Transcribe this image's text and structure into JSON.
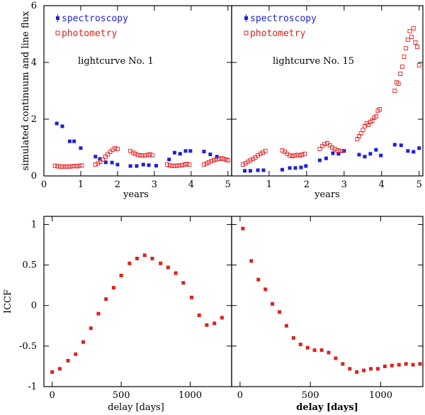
{
  "colors": {
    "spectroscopy": "#1f1fd8",
    "photometry": "#e02020",
    "iccf": "#e02020",
    "axis": "#000000"
  },
  "chart_data": [
    {
      "type": "scatter",
      "id": "lc1",
      "title": "lightcurve No. 1",
      "xlabel": "years",
      "ylabel": "simulated continuum and line flux",
      "xlim": [
        0,
        5.1
      ],
      "ylim": [
        0,
        6
      ],
      "xticks": [
        0,
        1,
        2,
        3,
        4,
        5
      ],
      "yticks": [
        0,
        2,
        4,
        6
      ],
      "legend": [
        {
          "name": "spectroscopy",
          "marker": "filled-square"
        },
        {
          "name": "photometry",
          "marker": "open-square"
        }
      ],
      "series": [
        {
          "name": "spectroscopy",
          "marker": "filled-square",
          "x": [
            0.35,
            0.5,
            0.7,
            0.82,
            1.0,
            1.4,
            1.52,
            1.68,
            1.85,
            2.0,
            2.35,
            2.52,
            2.7,
            2.85,
            3.05,
            3.4,
            3.55,
            3.7,
            3.85,
            3.98,
            4.35,
            4.52,
            4.7
          ],
          "y": [
            1.85,
            1.75,
            1.22,
            1.22,
            0.98,
            0.68,
            0.6,
            0.48,
            0.47,
            0.4,
            0.35,
            0.35,
            0.4,
            0.38,
            0.36,
            0.58,
            0.82,
            0.78,
            0.88,
            0.88,
            0.86,
            0.76,
            0.68
          ]
        },
        {
          "name": "photometry",
          "marker": "open-square",
          "x": [
            0.3,
            0.37,
            0.44,
            0.5,
            0.57,
            0.63,
            0.7,
            0.77,
            0.83,
            0.9,
            0.97,
            1.03,
            1.4,
            1.47,
            1.53,
            1.6,
            1.67,
            1.73,
            1.8,
            1.87,
            1.93,
            2.0,
            2.35,
            2.42,
            2.48,
            2.55,
            2.62,
            2.68,
            2.75,
            2.82,
            2.88,
            2.95,
            3.35,
            3.42,
            3.48,
            3.55,
            3.62,
            3.68,
            3.75,
            3.82,
            3.88,
            3.95,
            4.35,
            4.42,
            4.48,
            4.55,
            4.62,
            4.68,
            4.75,
            4.82,
            4.88,
            4.95,
            5.0
          ],
          "y": [
            0.36,
            0.34,
            0.33,
            0.33,
            0.33,
            0.33,
            0.33,
            0.34,
            0.35,
            0.34,
            0.36,
            0.37,
            0.4,
            0.44,
            0.5,
            0.58,
            0.68,
            0.76,
            0.85,
            0.92,
            0.98,
            0.95,
            0.88,
            0.82,
            0.78,
            0.74,
            0.73,
            0.72,
            0.72,
            0.74,
            0.76,
            0.73,
            0.4,
            0.37,
            0.36,
            0.35,
            0.36,
            0.37,
            0.38,
            0.4,
            0.42,
            0.4,
            0.4,
            0.44,
            0.48,
            0.52,
            0.56,
            0.58,
            0.6,
            0.62,
            0.6,
            0.58,
            0.55
          ]
        }
      ]
    },
    {
      "type": "scatter",
      "id": "lc15",
      "title": "lightcurve No. 15",
      "xlabel": "years",
      "xlim": [
        0,
        5.1
      ],
      "ylim": [
        0,
        6
      ],
      "xticks": [
        1,
        2,
        3,
        4,
        5
      ],
      "yticks": [
        0,
        2,
        4,
        6
      ],
      "legend": [
        {
          "name": "spectroscopy",
          "marker": "filled-square"
        },
        {
          "name": "photometry",
          "marker": "open-square"
        }
      ],
      "series": [
        {
          "name": "spectroscopy",
          "marker": "filled-square",
          "x": [
            0.35,
            0.5,
            0.7,
            0.85,
            1.35,
            1.55,
            1.7,
            1.85,
            1.98,
            2.35,
            2.52,
            2.7,
            2.85,
            3.0,
            3.4,
            3.55,
            3.7,
            3.85,
            3.98,
            4.35,
            4.52,
            4.7,
            4.85,
            5.0
          ],
          "y": [
            0.18,
            0.18,
            0.2,
            0.2,
            0.22,
            0.28,
            0.28,
            0.3,
            0.35,
            0.55,
            0.62,
            0.8,
            0.78,
            0.88,
            0.75,
            0.68,
            0.78,
            0.92,
            0.72,
            1.1,
            1.08,
            0.88,
            0.85,
            0.98
          ]
        },
        {
          "name": "photometry",
          "marker": "open-square",
          "x": [
            0.3,
            0.37,
            0.44,
            0.5,
            0.57,
            0.63,
            0.7,
            0.77,
            0.83,
            0.9,
            1.35,
            1.42,
            1.48,
            1.55,
            1.62,
            1.68,
            1.75,
            1.82,
            1.88,
            1.95,
            2.35,
            2.42,
            2.48,
            2.55,
            2.62,
            2.68,
            2.75,
            2.82,
            2.88,
            2.95,
            3.35,
            3.4,
            3.45,
            3.5,
            3.55,
            3.6,
            3.65,
            3.7,
            3.75,
            3.8,
            3.85,
            3.9,
            3.95,
            4.35,
            4.4,
            4.45,
            4.5,
            4.55,
            4.6,
            4.65,
            4.7,
            4.75,
            4.8,
            4.85,
            4.9,
            4.95,
            5.0
          ],
          "y": [
            0.4,
            0.45,
            0.5,
            0.55,
            0.6,
            0.65,
            0.72,
            0.78,
            0.82,
            0.88,
            0.9,
            0.85,
            0.78,
            0.72,
            0.7,
            0.72,
            0.74,
            0.72,
            0.75,
            0.78,
            0.95,
            1.05,
            1.12,
            1.15,
            1.08,
            1.0,
            0.95,
            0.9,
            0.88,
            0.88,
            1.3,
            1.4,
            1.5,
            1.62,
            1.75,
            1.85,
            1.8,
            1.9,
            1.95,
            2.05,
            2.1,
            2.3,
            2.35,
            3.0,
            3.3,
            3.25,
            3.6,
            3.85,
            4.2,
            4.5,
            4.8,
            5.1,
            4.9,
            5.2,
            4.7,
            4.55,
            3.9
          ]
        }
      ]
    },
    {
      "type": "scatter",
      "id": "iccf1",
      "xlabel": "delay [days]",
      "ylabel": "ICCF",
      "xlim": [
        -60,
        1300
      ],
      "ylim": [
        -1,
        1.1
      ],
      "xticks": [
        0,
        500,
        1000
      ],
      "yticks": [
        -1,
        -0.5,
        0,
        0.5,
        1
      ],
      "series": [
        {
          "name": "ICCF",
          "marker": "filled-square",
          "x": [
            0,
            55,
            115,
            170,
            225,
            280,
            335,
            390,
            445,
            500,
            560,
            615,
            670,
            725,
            785,
            840,
            895,
            950,
            1010,
            1065,
            1120,
            1175,
            1230
          ],
          "y": [
            -0.82,
            -0.78,
            -0.68,
            -0.6,
            -0.45,
            -0.28,
            -0.1,
            0.08,
            0.22,
            0.37,
            0.52,
            0.58,
            0.62,
            0.58,
            0.52,
            0.47,
            0.4,
            0.28,
            0.1,
            -0.12,
            -0.24,
            -0.22,
            -0.15
          ]
        }
      ]
    },
    {
      "type": "scatter",
      "id": "iccf15",
      "xlabel": "delay [days]",
      "xlim": [
        -60,
        1300
      ],
      "ylim": [
        -1,
        1.1
      ],
      "xticks": [
        0,
        500,
        1000
      ],
      "yticks": [
        -1,
        -0.5,
        0,
        0.5,
        1
      ],
      "series": [
        {
          "name": "ICCF",
          "marker": "filled-square",
          "x": [
            20,
            80,
            130,
            180,
            230,
            280,
            330,
            380,
            430,
            480,
            530,
            580,
            630,
            680,
            730,
            780,
            830,
            880,
            930,
            980,
            1030,
            1080,
            1130,
            1180,
            1230,
            1280
          ],
          "y": [
            0.95,
            0.55,
            0.32,
            0.2,
            0.02,
            -0.08,
            -0.25,
            -0.4,
            -0.48,
            -0.52,
            -0.55,
            -0.55,
            -0.58,
            -0.65,
            -0.72,
            -0.78,
            -0.82,
            -0.8,
            -0.78,
            -0.78,
            -0.75,
            -0.74,
            -0.73,
            -0.72,
            -0.73,
            -0.72
          ]
        }
      ]
    }
  ]
}
